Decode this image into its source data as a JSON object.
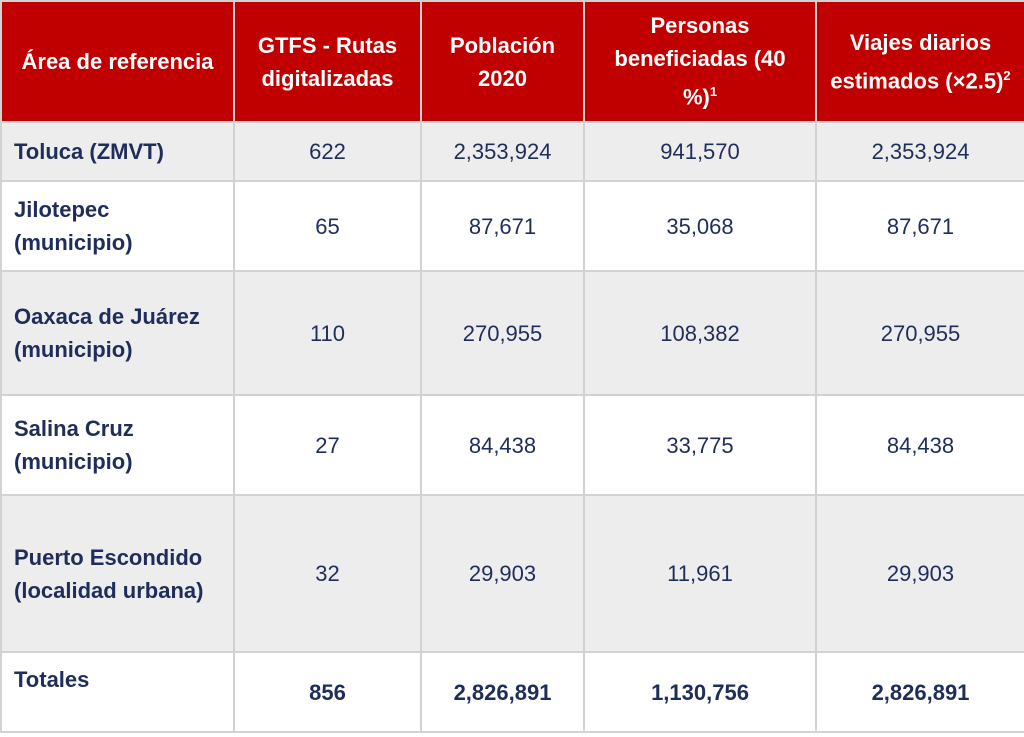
{
  "headers": [
    {
      "text": "Área de referencia",
      "sup": ""
    },
    {
      "text": "GTFS - Rutas digitalizadas",
      "sup": ""
    },
    {
      "text": "Población 2020",
      "sup": ""
    },
    {
      "text": "Personas beneficiadas (40 %)",
      "sup": "1"
    },
    {
      "text": "Viajes diarios estimados (×2.5)",
      "sup": "2"
    }
  ],
  "rows": [
    {
      "area": "Toluca (ZMVT)",
      "rutas": "622",
      "poblacion": "2,353,924",
      "personas": "941,570",
      "viajes": "2,353,924"
    },
    {
      "area": "Jilotepec (municipio)",
      "rutas": "65",
      "poblacion": "87,671",
      "personas": "35,068",
      "viajes": "87,671"
    },
    {
      "area": "Oaxaca de Juárez (municipio)",
      "rutas": "110",
      "poblacion": "270,955",
      "personas": "108,382",
      "viajes": "270,955"
    },
    {
      "area": "Salina Cruz (municipio)",
      "rutas": "27",
      "poblacion": "84,438",
      "personas": "33,775",
      "viajes": "84,438"
    },
    {
      "area": "Puerto Escondido (localidad urbana)",
      "rutas": "32",
      "poblacion": "29,903",
      "personas": "11,961",
      "viajes": "29,903"
    }
  ],
  "totals": {
    "area": "Totales",
    "rutas": "856",
    "poblacion": "2,826,891",
    "personas": "1,130,756",
    "viajes": "2,826,891"
  },
  "colors": {
    "header_bg": "#c00000",
    "text": "#1f2d5a",
    "alt_row": "#ededed"
  }
}
